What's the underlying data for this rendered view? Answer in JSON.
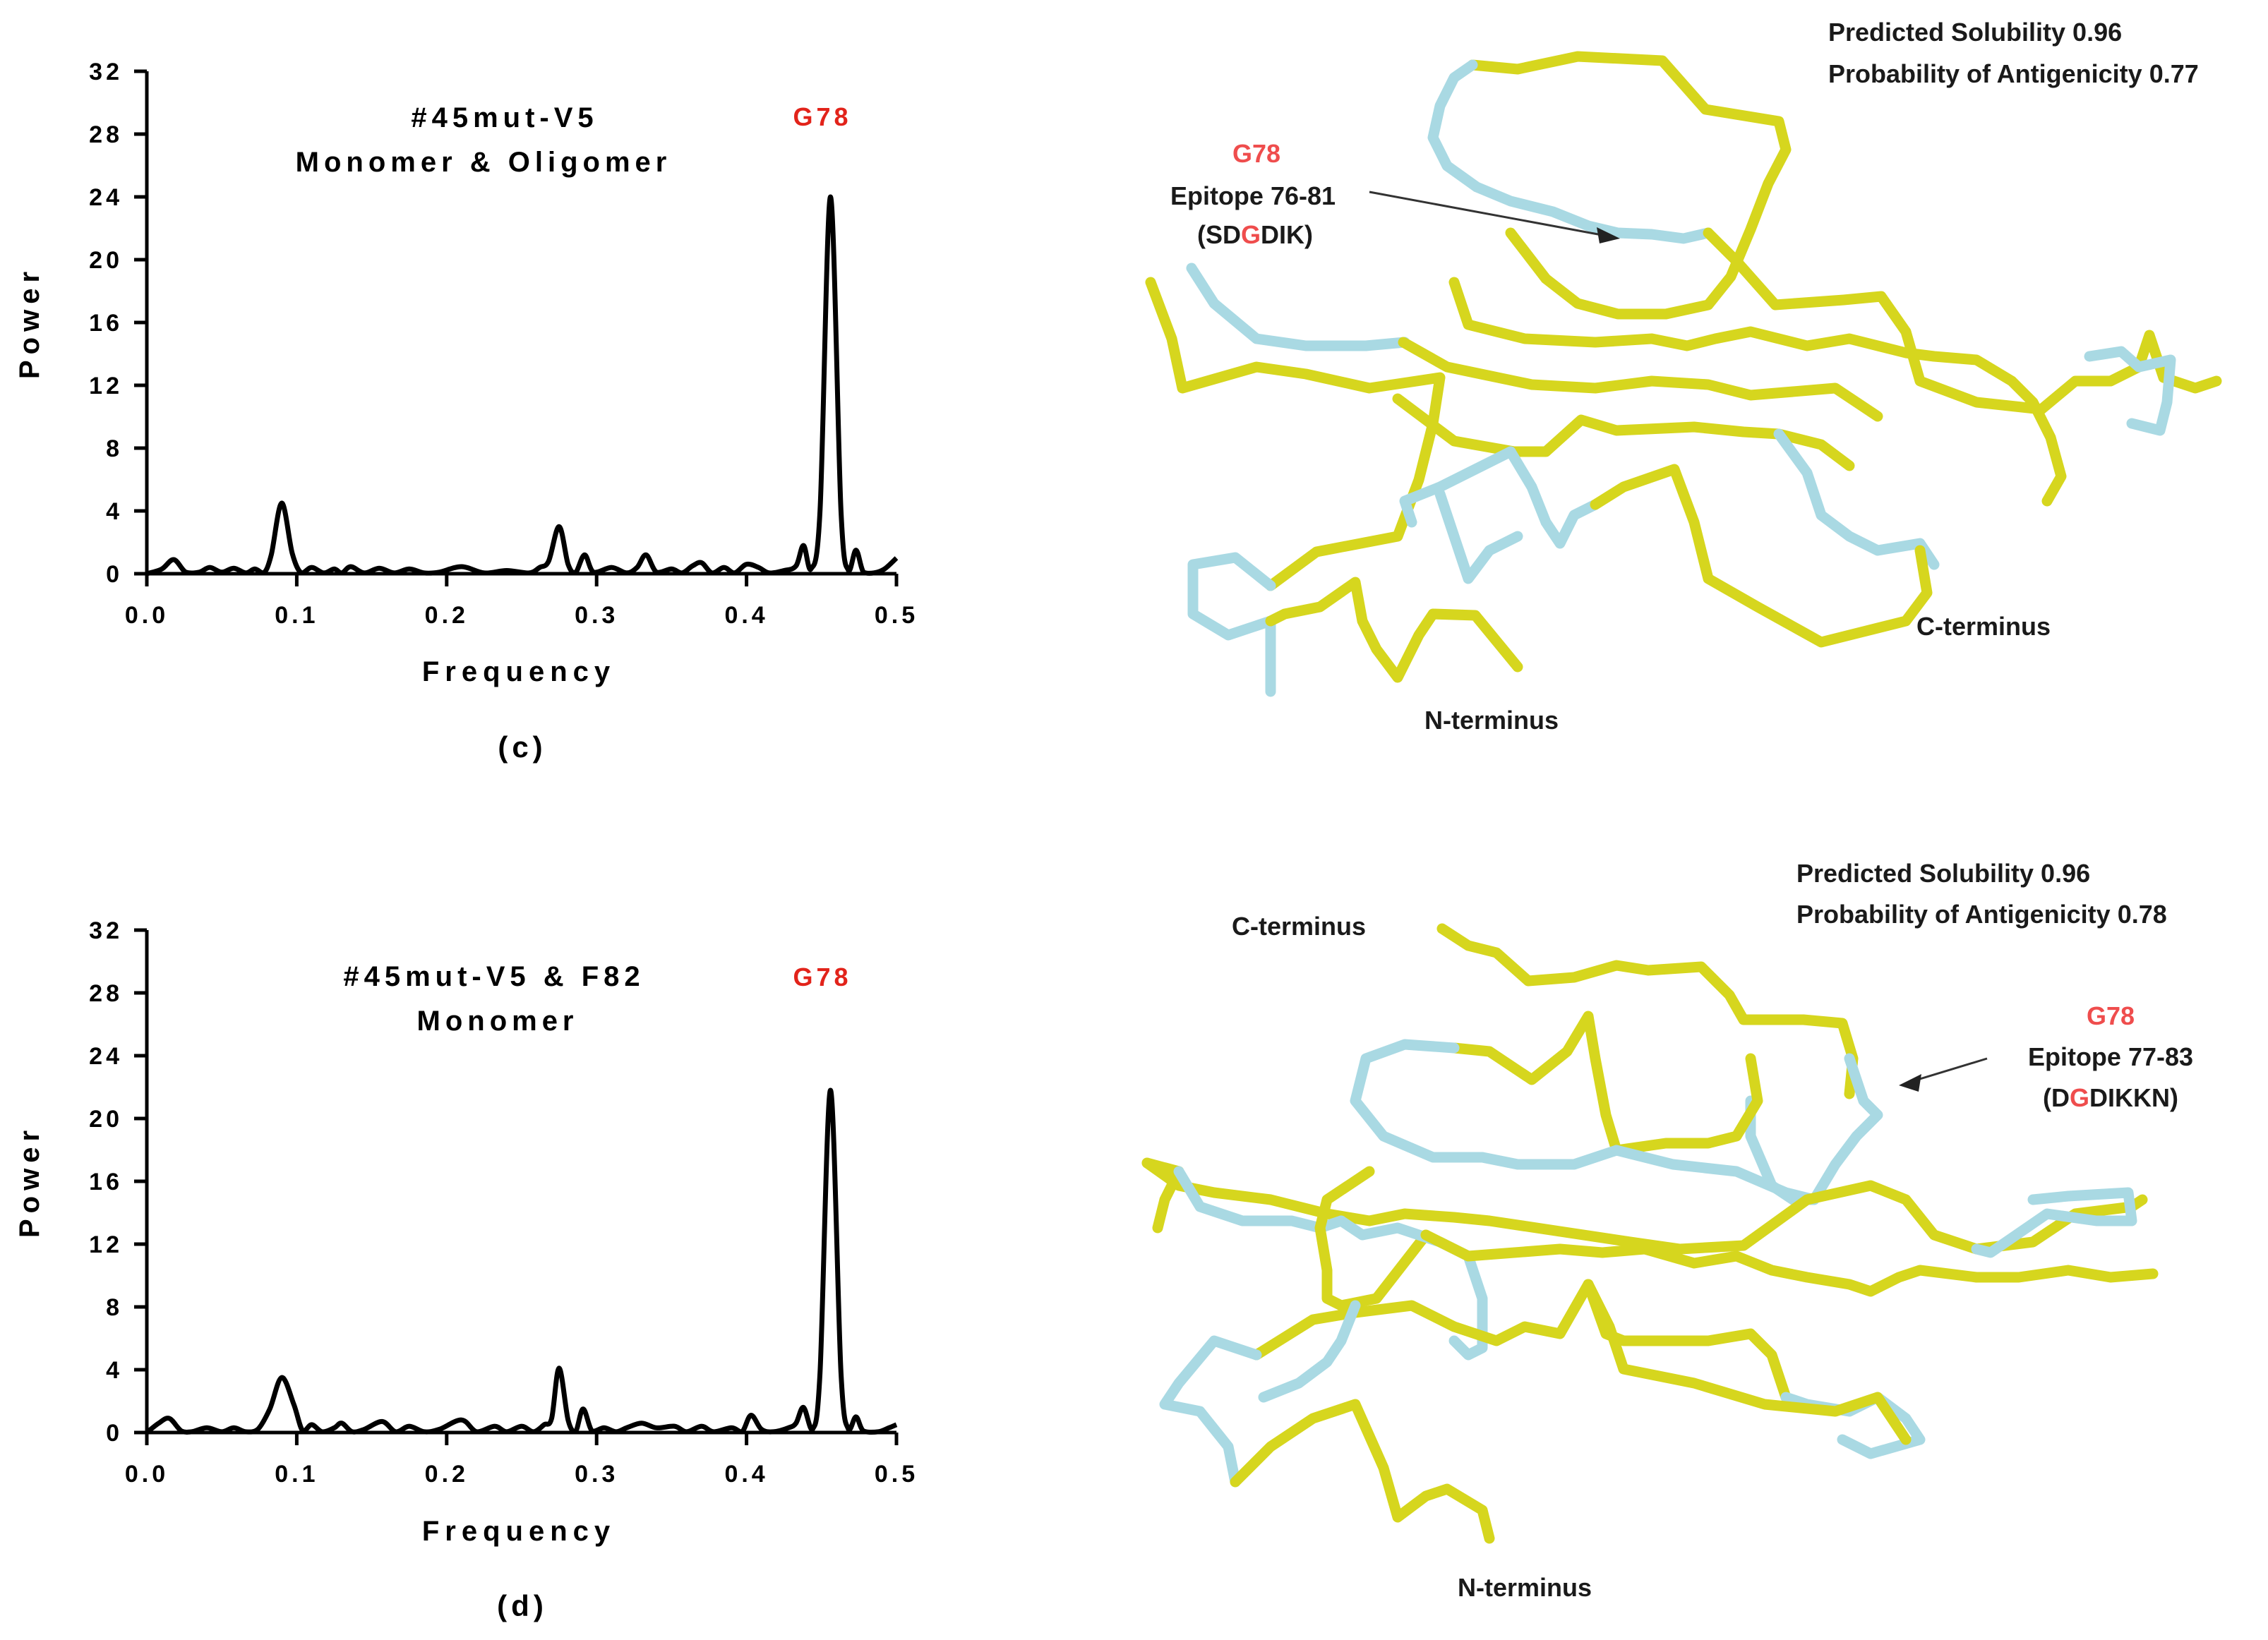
{
  "chart_data": [
    {
      "type": "line",
      "panel": "(c)",
      "title_lines": [
        "#45mut-V5",
        "Monomer & Oligomer"
      ],
      "highlight": "G78",
      "xlabel": "Frequency",
      "ylabel": "Power",
      "xlim": [
        0.0,
        0.5
      ],
      "ylim": [
        0,
        32
      ],
      "xticks": [
        "0.0",
        "0.1",
        "0.2",
        "0.3",
        "0.4",
        "0.5"
      ],
      "yticks": [
        "0",
        "4",
        "8",
        "12",
        "16",
        "20",
        "24",
        "28",
        "32"
      ],
      "points": [
        [
          0,
          0
        ],
        [
          0.01,
          0.3
        ],
        [
          0.018,
          0.9
        ],
        [
          0.026,
          0.1
        ],
        [
          0.035,
          0.1
        ],
        [
          0.042,
          0.4
        ],
        [
          0.05,
          0.1
        ],
        [
          0.058,
          0.35
        ],
        [
          0.066,
          0.05
        ],
        [
          0.072,
          0.3
        ],
        [
          0.078,
          0.05
        ],
        [
          0.083,
          1.2
        ],
        [
          0.09,
          4.5
        ],
        [
          0.097,
          1.3
        ],
        [
          0.103,
          0.05
        ],
        [
          0.11,
          0.4
        ],
        [
          0.118,
          0.05
        ],
        [
          0.125,
          0.3
        ],
        [
          0.13,
          0.05
        ],
        [
          0.136,
          0.45
        ],
        [
          0.145,
          0.05
        ],
        [
          0.155,
          0.35
        ],
        [
          0.165,
          0.05
        ],
        [
          0.175,
          0.3
        ],
        [
          0.185,
          0.05
        ],
        [
          0.195,
          0.1
        ],
        [
          0.21,
          0.45
        ],
        [
          0.225,
          0.05
        ],
        [
          0.24,
          0.2
        ],
        [
          0.255,
          0.05
        ],
        [
          0.262,
          0.4
        ],
        [
          0.268,
          0.8
        ],
        [
          0.275,
          3.0
        ],
        [
          0.281,
          0.6
        ],
        [
          0.286,
          0.1
        ],
        [
          0.292,
          1.2
        ],
        [
          0.298,
          0.1
        ],
        [
          0.31,
          0.4
        ],
        [
          0.32,
          0.05
        ],
        [
          0.327,
          0.4
        ],
        [
          0.333,
          1.2
        ],
        [
          0.34,
          0.1
        ],
        [
          0.35,
          0.3
        ],
        [
          0.357,
          0.05
        ],
        [
          0.364,
          0.5
        ],
        [
          0.37,
          0.7
        ],
        [
          0.377,
          0.05
        ],
        [
          0.385,
          0.4
        ],
        [
          0.392,
          0.05
        ],
        [
          0.4,
          0.6
        ],
        [
          0.408,
          0.4
        ],
        [
          0.415,
          0.05
        ],
        [
          0.425,
          0.2
        ],
        [
          0.433,
          0.5
        ],
        [
          0.438,
          1.8
        ],
        [
          0.443,
          0.3
        ],
        [
          0.449,
          4.0
        ],
        [
          0.456,
          24.0
        ],
        [
          0.463,
          4.0
        ],
        [
          0.468,
          0.2
        ],
        [
          0.473,
          1.5
        ],
        [
          0.478,
          0.1
        ],
        [
          0.485,
          0.05
        ],
        [
          0.492,
          0.3
        ],
        [
          0.5,
          1.0
        ]
      ]
    },
    {
      "type": "line",
      "panel": "(d)",
      "title_lines": [
        "#45mut-V5 & F82",
        "Monomer"
      ],
      "highlight": "G78",
      "xlabel": "Frequency",
      "ylabel": "Power",
      "xlim": [
        0.0,
        0.5
      ],
      "ylim": [
        0,
        32
      ],
      "xticks": [
        "0.0",
        "0.1",
        "0.2",
        "0.3",
        "0.4",
        "0.5"
      ],
      "yticks": [
        "0",
        "4",
        "8",
        "12",
        "16",
        "20",
        "24",
        "28",
        "32"
      ],
      "points": [
        [
          0,
          0
        ],
        [
          0.008,
          0.6
        ],
        [
          0.015,
          0.9
        ],
        [
          0.023,
          0.1
        ],
        [
          0.03,
          0.05
        ],
        [
          0.04,
          0.3
        ],
        [
          0.05,
          0.05
        ],
        [
          0.058,
          0.3
        ],
        [
          0.066,
          0.05
        ],
        [
          0.074,
          0.2
        ],
        [
          0.082,
          1.5
        ],
        [
          0.09,
          3.5
        ],
        [
          0.098,
          1.8
        ],
        [
          0.104,
          0.1
        ],
        [
          0.11,
          0.5
        ],
        [
          0.117,
          0.05
        ],
        [
          0.125,
          0.3
        ],
        [
          0.13,
          0.6
        ],
        [
          0.137,
          0.05
        ],
        [
          0.145,
          0.2
        ],
        [
          0.157,
          0.7
        ],
        [
          0.166,
          0.05
        ],
        [
          0.175,
          0.4
        ],
        [
          0.185,
          0.05
        ],
        [
          0.195,
          0.2
        ],
        [
          0.21,
          0.8
        ],
        [
          0.22,
          0.05
        ],
        [
          0.232,
          0.4
        ],
        [
          0.24,
          0.05
        ],
        [
          0.25,
          0.4
        ],
        [
          0.258,
          0.05
        ],
        [
          0.265,
          0.5
        ],
        [
          0.27,
          0.9
        ],
        [
          0.275,
          4.1
        ],
        [
          0.281,
          0.8
        ],
        [
          0.286,
          0.1
        ],
        [
          0.291,
          1.5
        ],
        [
          0.297,
          0.1
        ],
        [
          0.305,
          0.3
        ],
        [
          0.313,
          0.05
        ],
        [
          0.32,
          0.3
        ],
        [
          0.33,
          0.6
        ],
        [
          0.34,
          0.3
        ],
        [
          0.352,
          0.4
        ],
        [
          0.36,
          0.05
        ],
        [
          0.37,
          0.4
        ],
        [
          0.378,
          0.05
        ],
        [
          0.39,
          0.3
        ],
        [
          0.397,
          0.05
        ],
        [
          0.403,
          1.1
        ],
        [
          0.41,
          0.2
        ],
        [
          0.418,
          0.05
        ],
        [
          0.428,
          0.3
        ],
        [
          0.433,
          0.6
        ],
        [
          0.438,
          1.6
        ],
        [
          0.444,
          0.2
        ],
        [
          0.449,
          3.8
        ],
        [
          0.456,
          21.8
        ],
        [
          0.463,
          3.8
        ],
        [
          0.468,
          0.2
        ],
        [
          0.473,
          1.0
        ],
        [
          0.478,
          0.1
        ],
        [
          0.488,
          0.05
        ],
        [
          0.495,
          0.3
        ],
        [
          0.5,
          0.5
        ]
      ]
    }
  ],
  "panel_c": {
    "label": "(c)",
    "protein": {
      "solubility": "Predicted Solubility 0.96",
      "antigenicity": "Probability of Antigenicity 0.77",
      "residue": "G78",
      "epitope": "Epitope 76-81",
      "seq_prefix": "(SD",
      "seq_mid": "G",
      "seq_suffix": "DIK)",
      "c_terminus": "C-terminus",
      "n_terminus": "N-terminus"
    }
  },
  "panel_d": {
    "label": "(d)",
    "protein": {
      "solubility": "Predicted Solubility 0.96",
      "antigenicity": "Probability of Antigenicity 0.78",
      "residue": "G78",
      "epitope": "Epitope 77-83",
      "seq_prefix": "(D",
      "seq_mid": "G",
      "seq_suffix": "DIKKN)",
      "c_terminus": "C-terminus",
      "n_terminus": "N-terminus"
    }
  },
  "colors": {
    "trace": "#000000",
    "highlight": "#e2231a",
    "backbone": "#d6d61e",
    "backbone_alt": "#a9d9e3"
  }
}
